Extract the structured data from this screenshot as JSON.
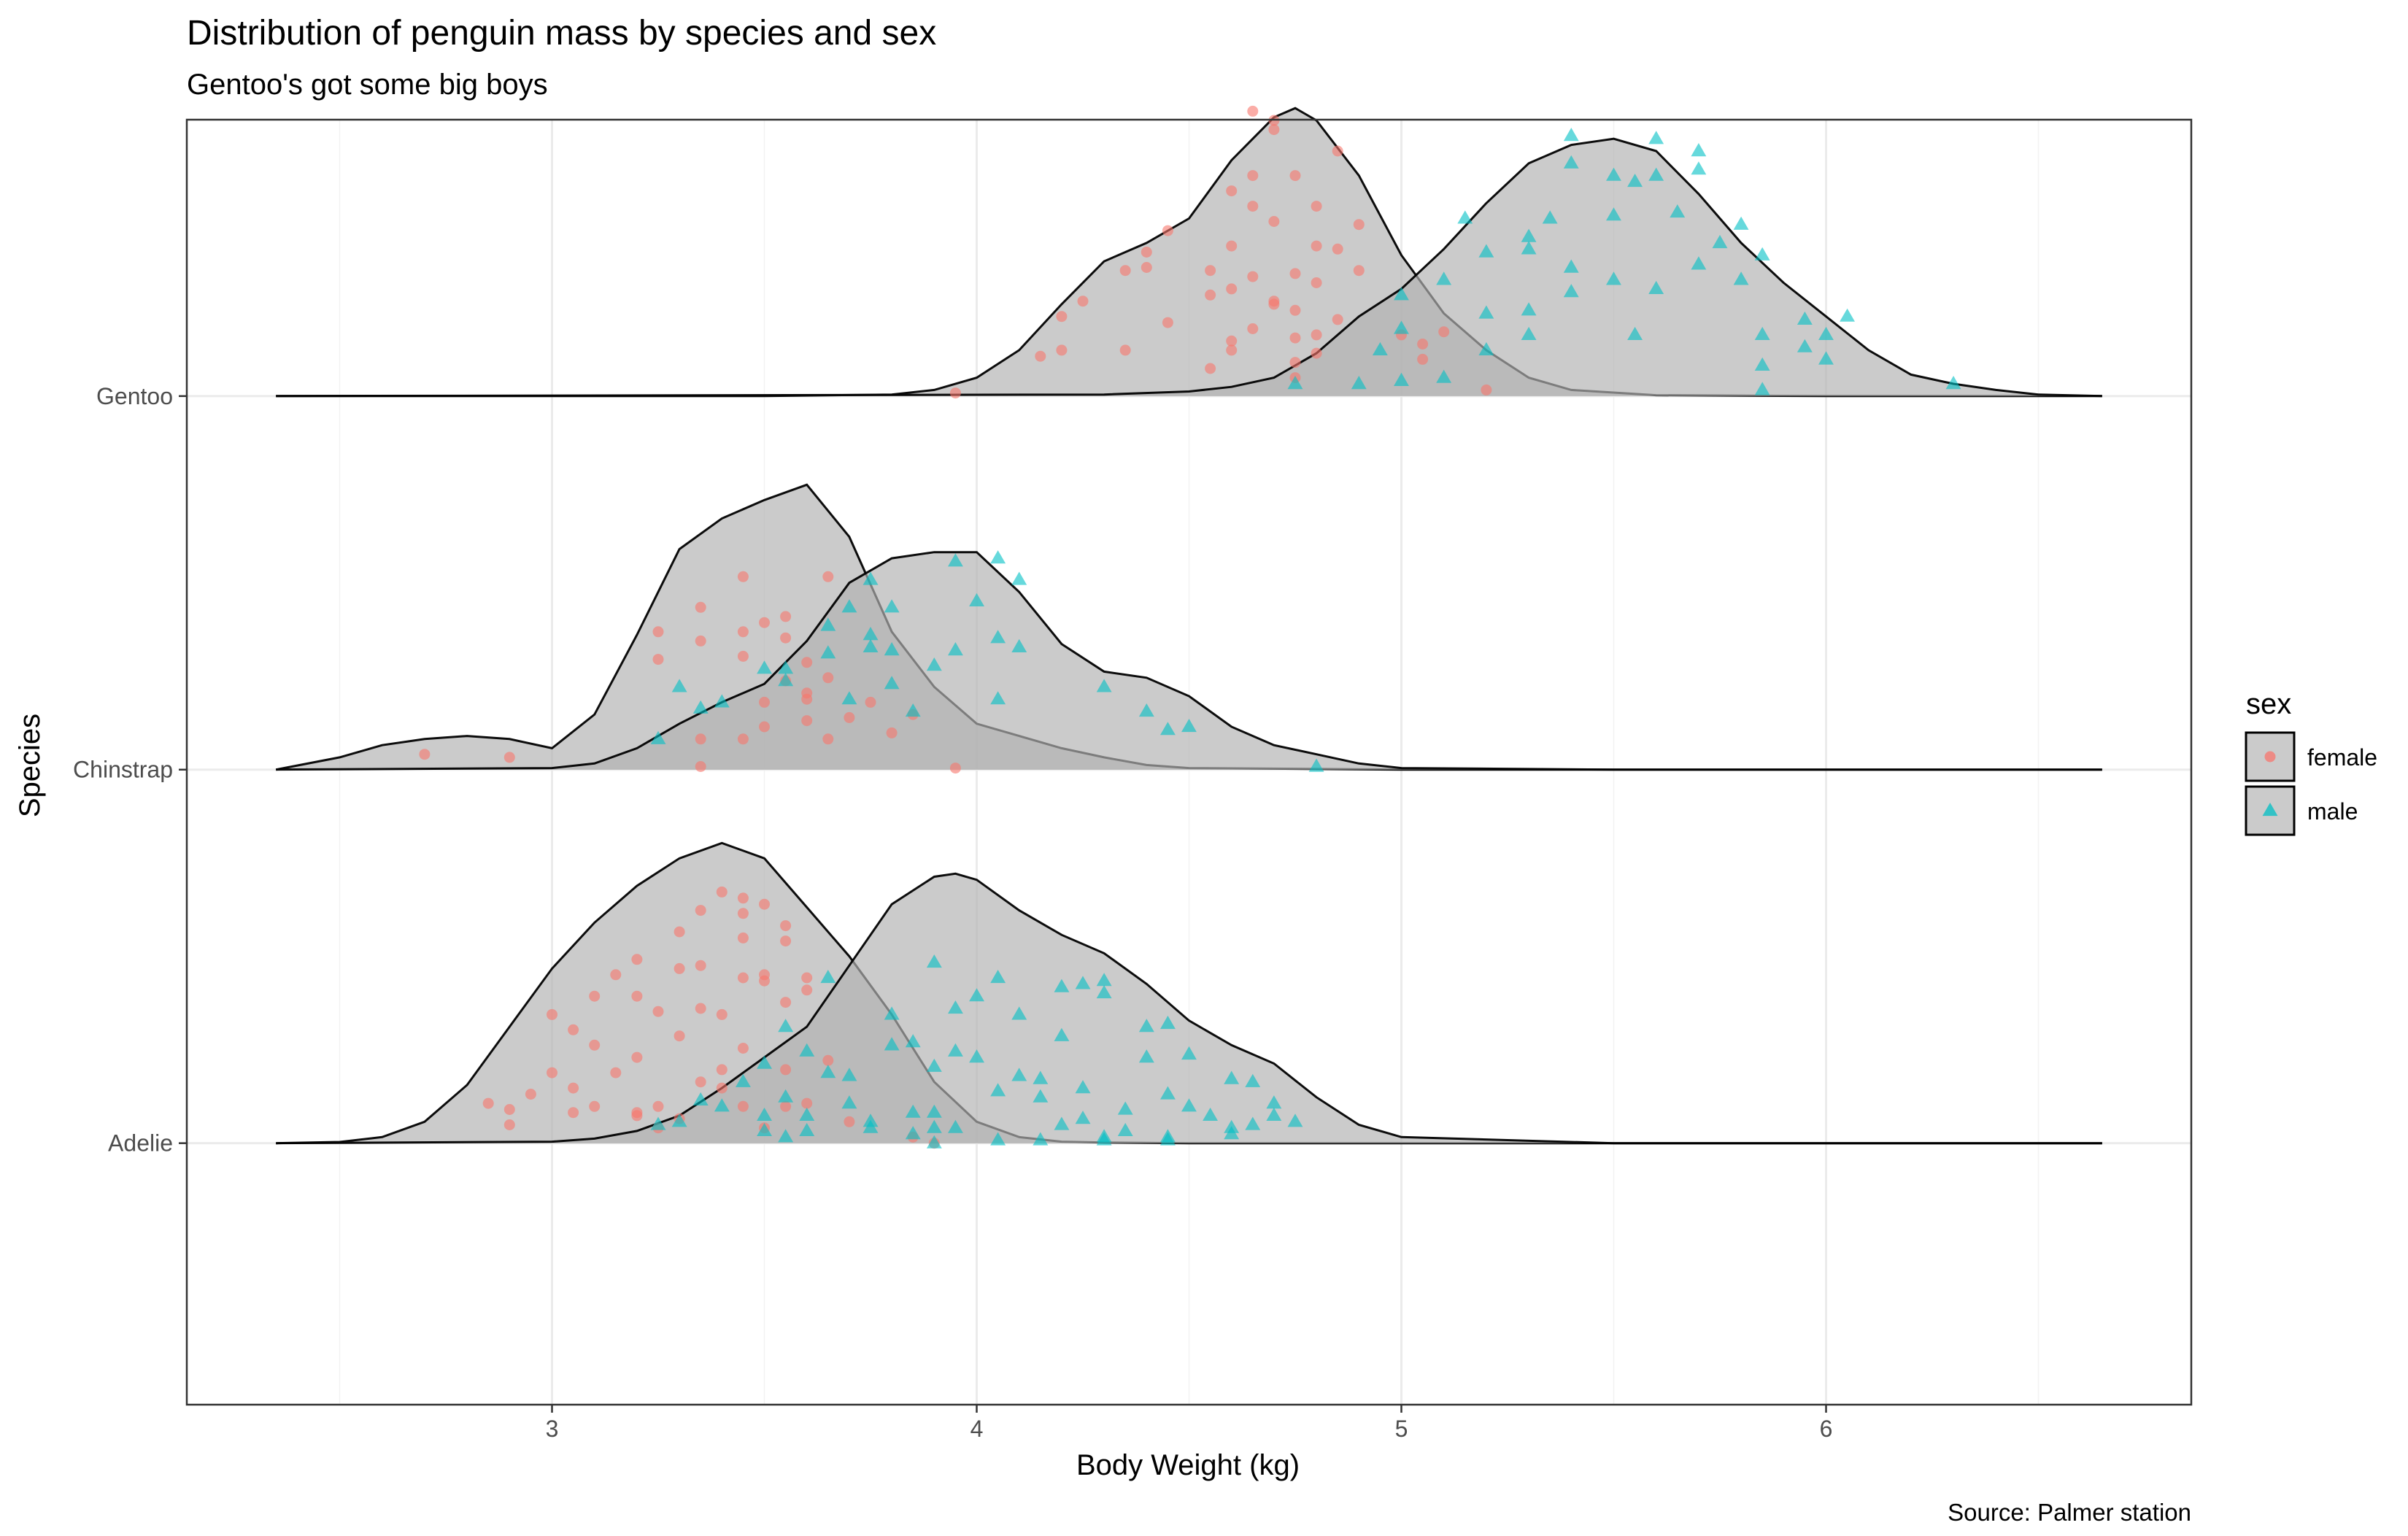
{
  "chart_data": {
    "type": "ridgeline-density-with-points",
    "title": "Distribution of penguin mass by species and sex",
    "subtitle": "Gentoo's got some big boys",
    "xlabel": "Body Weight (kg)",
    "ylabel": "Species",
    "caption": "Source: Palmer station",
    "xlim": [
      2.14,
      6.86
    ],
    "x_ticks": [
      3,
      4,
      5,
      6
    ],
    "x_minor_ticks": [
      2.5,
      3.5,
      4.5,
      5.5,
      6.5
    ],
    "y_categories": [
      "Adelie",
      "Chinstrap",
      "Gentoo"
    ],
    "ridge_height": 0.82,
    "grid": true,
    "legend": {
      "title": "sex",
      "position": "right",
      "entries": [
        {
          "label": "female",
          "marker": "circle",
          "color": "#F8766D"
        },
        {
          "label": "male",
          "marker": "triangle",
          "color": "#00BFC4"
        }
      ]
    },
    "colors": {
      "density_fill": "#B2B2B2",
      "density_line": "#000000",
      "female": "#F8766D",
      "male": "#00BFC4"
    },
    "densities": [
      {
        "species": "Adelie",
        "sex": "female",
        "x": [
          2.35,
          2.5,
          2.6,
          2.7,
          2.8,
          2.9,
          3.0,
          3.1,
          3.2,
          3.3,
          3.4,
          3.5,
          3.6,
          3.7,
          3.8,
          3.9,
          4.0,
          4.1,
          4.2,
          4.3,
          4.5,
          5.0,
          6.0,
          6.65
        ],
        "y": [
          0,
          0.004,
          0.02,
          0.07,
          0.19,
          0.38,
          0.57,
          0.72,
          0.84,
          0.93,
          0.98,
          0.93,
          0.77,
          0.61,
          0.42,
          0.2,
          0.07,
          0.02,
          0.005,
          0.002,
          0,
          0,
          0,
          0
        ]
      },
      {
        "species": "Adelie",
        "sex": "male",
        "x": [
          2.35,
          3.0,
          3.1,
          3.2,
          3.3,
          3.4,
          3.5,
          3.6,
          3.7,
          3.8,
          3.9,
          3.95,
          4.0,
          4.1,
          4.2,
          4.3,
          4.4,
          4.5,
          4.6,
          4.7,
          4.8,
          4.9,
          5.0,
          5.5,
          6.0,
          6.65
        ],
        "y": [
          0,
          0.005,
          0.015,
          0.04,
          0.09,
          0.18,
          0.28,
          0.38,
          0.58,
          0.78,
          0.87,
          0.88,
          0.86,
          0.76,
          0.68,
          0.62,
          0.52,
          0.4,
          0.32,
          0.26,
          0.15,
          0.06,
          0.02,
          0,
          0,
          0
        ]
      },
      {
        "species": "Chinstrap",
        "sex": "female",
        "x": [
          2.35,
          2.5,
          2.6,
          2.7,
          2.8,
          2.9,
          3.0,
          3.1,
          3.2,
          3.3,
          3.4,
          3.5,
          3.6,
          3.7,
          3.8,
          3.9,
          4.0,
          4.1,
          4.2,
          4.3,
          4.4,
          4.5,
          5.0,
          6.0,
          6.65
        ],
        "y": [
          0,
          0.04,
          0.08,
          0.1,
          0.11,
          0.1,
          0.07,
          0.18,
          0.44,
          0.72,
          0.82,
          0.88,
          0.93,
          0.76,
          0.45,
          0.27,
          0.15,
          0.11,
          0.07,
          0.04,
          0.015,
          0.005,
          0,
          0,
          0
        ]
      },
      {
        "species": "Chinstrap",
        "sex": "male",
        "x": [
          2.35,
          3.0,
          3.1,
          3.2,
          3.3,
          3.4,
          3.5,
          3.6,
          3.7,
          3.8,
          3.9,
          4.0,
          4.1,
          4.2,
          4.3,
          4.4,
          4.5,
          4.6,
          4.7,
          4.8,
          4.9,
          5.0,
          5.5,
          6.0,
          6.65
        ],
        "y": [
          0,
          0.005,
          0.02,
          0.07,
          0.15,
          0.22,
          0.28,
          0.42,
          0.61,
          0.69,
          0.71,
          0.71,
          0.58,
          0.41,
          0.32,
          0.3,
          0.24,
          0.14,
          0.08,
          0.05,
          0.02,
          0.005,
          0,
          0,
          0
        ]
      },
      {
        "species": "Gentoo",
        "sex": "female",
        "x": [
          2.35,
          3.5,
          3.8,
          3.9,
          4.0,
          4.1,
          4.2,
          4.3,
          4.4,
          4.5,
          4.6,
          4.7,
          4.75,
          4.8,
          4.9,
          5.0,
          5.1,
          5.2,
          5.3,
          5.4,
          5.6,
          6.0,
          6.65
        ],
        "y": [
          0,
          0,
          0.005,
          0.02,
          0.06,
          0.15,
          0.3,
          0.44,
          0.5,
          0.58,
          0.77,
          0.91,
          0.94,
          0.9,
          0.72,
          0.46,
          0.27,
          0.15,
          0.06,
          0.02,
          0.003,
          0,
          0
        ]
      },
      {
        "species": "Gentoo",
        "sex": "male",
        "x": [
          2.35,
          4.3,
          4.5,
          4.6,
          4.7,
          4.8,
          4.9,
          5.0,
          5.1,
          5.2,
          5.3,
          5.4,
          5.5,
          5.6,
          5.7,
          5.8,
          5.9,
          6.0,
          6.1,
          6.2,
          6.3,
          6.4,
          6.5,
          6.65
        ],
        "y": [
          0,
          0.005,
          0.015,
          0.03,
          0.06,
          0.14,
          0.26,
          0.35,
          0.48,
          0.63,
          0.76,
          0.82,
          0.84,
          0.8,
          0.66,
          0.5,
          0.37,
          0.26,
          0.15,
          0.07,
          0.04,
          0.02,
          0.005,
          0
        ]
      }
    ],
    "points": [
      {
        "species": "Gentoo",
        "sex": "female",
        "x": [
          4.65,
          4.7,
          4.7,
          4.85,
          4.65,
          4.6,
          4.75,
          4.8,
          4.65,
          4.9,
          4.7,
          4.45,
          4.6,
          4.8,
          4.85,
          4.4,
          4.4,
          4.35,
          4.55,
          4.65,
          4.9,
          4.75,
          4.8,
          4.6,
          4.25,
          4.7,
          4.55,
          4.7,
          4.75,
          4.85,
          4.2,
          4.45,
          4.65,
          4.75,
          4.8,
          5.1,
          5.0,
          5.05,
          4.2,
          4.15,
          4.35,
          4.6,
          4.6,
          4.8,
          4.75,
          4.55,
          5.05,
          4.75,
          5.2,
          3.95
        ],
        "y": [
          0.93,
          0.9,
          0.87,
          0.8,
          0.72,
          0.67,
          0.72,
          0.62,
          0.62,
          0.56,
          0.57,
          0.54,
          0.49,
          0.49,
          0.48,
          0.47,
          0.42,
          0.41,
          0.41,
          0.39,
          0.41,
          0.4,
          0.37,
          0.35,
          0.31,
          0.31,
          0.33,
          0.3,
          0.28,
          0.25,
          0.26,
          0.24,
          0.22,
          0.19,
          0.2,
          0.21,
          0.2,
          0.17,
          0.15,
          0.13,
          0.15,
          0.18,
          0.15,
          0.14,
          0.11,
          0.09,
          0.12,
          0.06,
          0.02,
          0.01
        ]
      },
      {
        "species": "Gentoo",
        "sex": "male",
        "x": [
          5.4,
          5.6,
          5.7,
          5.4,
          5.5,
          5.6,
          5.55,
          5.65,
          5.7,
          5.15,
          5.3,
          5.35,
          5.5,
          5.8,
          5.2,
          5.3,
          5.4,
          5.75,
          5.7,
          5.85,
          5.1,
          5.5,
          5.6,
          5.8,
          5.0,
          5.4,
          5.2,
          5.3,
          5.95,
          6.05,
          5.0,
          5.55,
          5.85,
          6.0,
          5.3,
          5.85,
          5.95,
          6.0,
          5.2,
          4.95,
          4.75,
          4.9,
          5.0,
          5.1,
          5.85,
          6.3
        ],
        "y": [
          0.85,
          0.84,
          0.8,
          0.76,
          0.72,
          0.72,
          0.7,
          0.6,
          0.74,
          0.58,
          0.52,
          0.58,
          0.59,
          0.56,
          0.47,
          0.48,
          0.42,
          0.5,
          0.43,
          0.46,
          0.38,
          0.38,
          0.35,
          0.38,
          0.33,
          0.34,
          0.27,
          0.28,
          0.25,
          0.26,
          0.22,
          0.2,
          0.2,
          0.2,
          0.2,
          0.1,
          0.16,
          0.12,
          0.15,
          0.15,
          0.04,
          0.04,
          0.05,
          0.06,
          0.02,
          0.04
        ]
      },
      {
        "species": "Chinstrap",
        "sex": "female",
        "x": [
          3.45,
          3.65,
          3.35,
          3.25,
          3.55,
          3.5,
          3.35,
          3.45,
          3.55,
          3.6,
          3.25,
          3.45,
          3.65,
          3.55,
          3.6,
          3.5,
          3.6,
          3.75,
          3.7,
          3.85,
          3.6,
          3.5,
          3.35,
          3.45,
          3.8,
          3.65,
          2.7,
          2.9,
          3.35,
          3.95
        ],
        "y": [
          0.63,
          0.63,
          0.53,
          0.45,
          0.5,
          0.48,
          0.42,
          0.45,
          0.43,
          0.35,
          0.36,
          0.37,
          0.3,
          0.29,
          0.25,
          0.22,
          0.23,
          0.22,
          0.17,
          0.18,
          0.16,
          0.14,
          0.1,
          0.1,
          0.12,
          0.1,
          0.05,
          0.04,
          0.01,
          0.005
        ]
      },
      {
        "species": "Chinstrap",
        "sex": "male",
        "x": [
          3.95,
          4.05,
          3.75,
          4.1,
          4.0,
          3.7,
          3.8,
          3.65,
          3.75,
          3.95,
          3.8,
          4.05,
          4.1,
          3.55,
          3.5,
          3.65,
          3.75,
          3.9,
          3.3,
          3.55,
          3.8,
          4.05,
          4.3,
          4.4,
          3.35,
          3.4,
          3.7,
          3.85,
          4.45,
          4.5,
          3.25,
          4.8
        ],
        "y": [
          0.68,
          0.69,
          0.62,
          0.62,
          0.55,
          0.53,
          0.53,
          0.47,
          0.44,
          0.39,
          0.39,
          0.43,
          0.4,
          0.33,
          0.33,
          0.38,
          0.4,
          0.34,
          0.27,
          0.29,
          0.28,
          0.23,
          0.27,
          0.19,
          0.2,
          0.22,
          0.23,
          0.19,
          0.13,
          0.14,
          0.1,
          0.01
        ]
      },
      {
        "species": "Adelie",
        "sex": "female",
        "x": [
          3.4,
          3.45,
          3.5,
          3.35,
          3.45,
          3.55,
          3.3,
          3.45,
          3.55,
          3.2,
          3.35,
          3.5,
          3.15,
          3.3,
          3.45,
          3.6,
          3.5,
          3.1,
          3.2,
          3.35,
          3.55,
          3.6,
          3.0,
          3.25,
          3.4,
          3.05,
          3.3,
          3.1,
          3.45,
          3.2,
          3.65,
          3.4,
          3.55,
          3.0,
          3.15,
          3.35,
          3.05,
          3.4,
          2.95,
          3.1,
          3.25,
          3.45,
          3.6,
          3.55,
          3.2,
          3.3,
          2.85,
          2.9,
          3.05,
          3.2,
          3.7,
          3.5,
          2.9,
          3.25,
          3.85,
          3.9
        ],
        "y": [
          0.82,
          0.8,
          0.78,
          0.76,
          0.75,
          0.71,
          0.69,
          0.67,
          0.66,
          0.6,
          0.58,
          0.55,
          0.55,
          0.57,
          0.54,
          0.54,
          0.53,
          0.48,
          0.48,
          0.44,
          0.46,
          0.5,
          0.42,
          0.43,
          0.42,
          0.37,
          0.35,
          0.32,
          0.31,
          0.28,
          0.27,
          0.24,
          0.24,
          0.23,
          0.23,
          0.2,
          0.18,
          0.18,
          0.16,
          0.12,
          0.12,
          0.12,
          0.13,
          0.12,
          0.1,
          0.08,
          0.13,
          0.11,
          0.1,
          0.09,
          0.07,
          0.05,
          0.06,
          0.05,
          0.02,
          0.0
        ]
      },
      {
        "species": "Adelie",
        "sex": "male",
        "x": [
          3.9,
          4.05,
          4.0,
          4.25,
          4.3,
          4.2,
          4.3,
          3.65,
          3.95,
          4.1,
          3.55,
          3.8,
          4.2,
          4.4,
          4.45,
          3.8,
          3.85,
          3.95,
          4.4,
          3.6,
          4.0,
          4.1,
          4.5,
          3.5,
          3.65,
          3.9,
          4.15,
          4.6,
          4.65,
          3.45,
          3.7,
          4.05,
          4.25,
          4.45,
          3.35,
          3.55,
          4.15,
          4.5,
          3.4,
          3.7,
          3.9,
          4.35,
          4.7,
          3.6,
          3.75,
          4.25,
          4.55,
          3.3,
          3.85,
          4.6,
          3.9,
          4.75,
          3.5,
          3.75,
          4.2,
          4.35,
          4.65,
          3.85,
          3.25,
          3.6,
          3.95,
          4.7,
          3.5,
          3.55,
          4.05,
          4.3,
          4.45,
          4.6,
          3.9,
          4.15,
          4.3,
          4.45
        ],
        "y": [
          0.59,
          0.54,
          0.48,
          0.52,
          0.53,
          0.51,
          0.49,
          0.54,
          0.44,
          0.42,
          0.38,
          0.42,
          0.35,
          0.38,
          0.39,
          0.32,
          0.33,
          0.3,
          0.28,
          0.3,
          0.28,
          0.22,
          0.29,
          0.26,
          0.23,
          0.25,
          0.21,
          0.21,
          0.2,
          0.2,
          0.22,
          0.17,
          0.18,
          0.16,
          0.14,
          0.15,
          0.15,
          0.12,
          0.12,
          0.13,
          0.1,
          0.11,
          0.13,
          0.09,
          0.07,
          0.08,
          0.09,
          0.07,
          0.1,
          0.05,
          0.05,
          0.07,
          0.04,
          0.05,
          0.06,
          0.04,
          0.06,
          0.03,
          0.06,
          0.04,
          0.05,
          0.09,
          0.09,
          0.02,
          0.01,
          0.01,
          0.02,
          0.03,
          0.0,
          0.01,
          0.02,
          0.01
        ]
      }
    ]
  }
}
